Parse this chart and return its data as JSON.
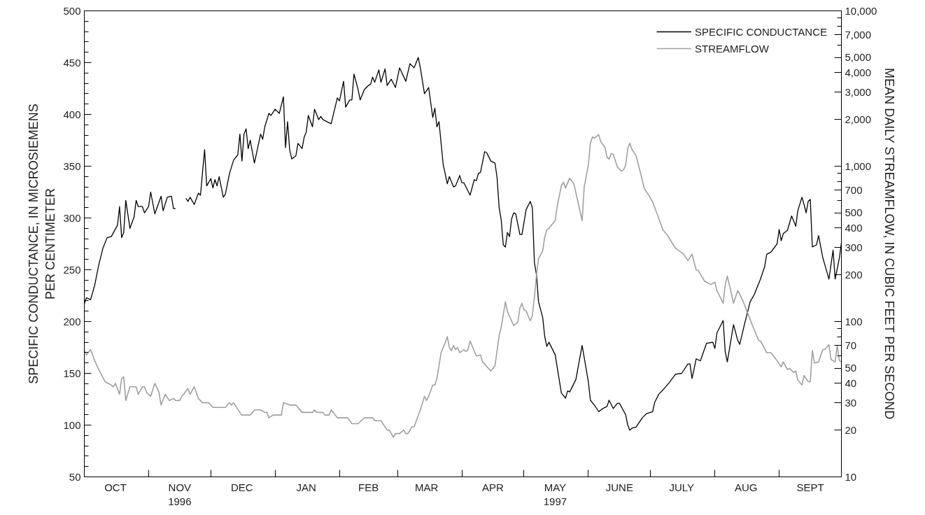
{
  "chart_data": {
    "type": "line",
    "ylabel": "SPECIFIC CONDUCTANCE, IN MICROSIEMENS\nPER CENTIMETER",
    "y2label": "MEAN DAILY STREAMFLOW, IN CUBIC FEET PER SECOND",
    "xlim": [
      "1996-10-01",
      "1997-10-01"
    ],
    "xticks": [
      {
        "value": "1996-10-01",
        "label": null
      },
      {
        "value": "1996-10-16",
        "label": "OCT"
      },
      {
        "value": "1996-11-01",
        "label": null
      },
      {
        "value": "1996-11-16",
        "label": "NOV\n1996"
      },
      {
        "value": "1996-12-01",
        "label": null
      },
      {
        "value": "1996-12-16",
        "label": "DEC"
      },
      {
        "value": "1997-01-01",
        "label": null
      },
      {
        "value": "1997-01-16",
        "label": "JAN"
      },
      {
        "value": "1997-02-01",
        "label": null
      },
      {
        "value": "1997-02-15",
        "label": "FEB"
      },
      {
        "value": "1997-03-01",
        "label": null
      },
      {
        "value": "1997-03-15",
        "label": "MAR"
      },
      {
        "value": "1997-04-01",
        "label": null
      },
      {
        "value": "1997-04-16",
        "label": "APR"
      },
      {
        "value": "1997-05-01",
        "label": null
      },
      {
        "value": "1997-05-16",
        "label": "MAY\n1997"
      },
      {
        "value": "1997-06-01",
        "label": null
      },
      {
        "value": "1997-06-16",
        "label": "JUNE"
      },
      {
        "value": "1997-07-01",
        "label": null
      },
      {
        "value": "1997-07-16",
        "label": "JULY"
      },
      {
        "value": "1997-08-01",
        "label": null
      },
      {
        "value": "1997-08-16",
        "label": "AUG"
      },
      {
        "value": "1997-09-01",
        "label": null
      },
      {
        "value": "1997-09-16",
        "label": "SEPT"
      },
      {
        "value": "1997-10-01",
        "label": null
      }
    ],
    "ylim": [
      50,
      500
    ],
    "yticks": [
      50,
      {
        "value": 60,
        "label": null
      },
      {
        "value": 70,
        "label": null
      },
      {
        "value": 80,
        "label": null
      },
      {
        "value": 90,
        "label": null
      },
      100,
      {
        "value": 110,
        "label": null
      },
      {
        "value": 120,
        "label": null
      },
      {
        "value": 130,
        "label": null
      },
      {
        "value": 140,
        "label": null
      },
      150,
      {
        "value": 160,
        "label": null
      },
      {
        "value": 170,
        "label": null
      },
      {
        "value": 180,
        "label": null
      },
      {
        "value": 190,
        "label": null
      },
      200,
      {
        "value": 210,
        "label": null
      },
      {
        "value": 220,
        "label": null
      },
      {
        "value": 230,
        "label": null
      },
      {
        "value": 240,
        "label": null
      },
      250,
      {
        "value": 260,
        "label": null
      },
      {
        "value": 270,
        "label": null
      },
      {
        "value": 280,
        "label": null
      },
      {
        "value": 290,
        "label": null
      },
      300,
      {
        "value": 310,
        "label": null
      },
      {
        "value": 320,
        "label": null
      },
      {
        "value": 330,
        "label": null
      },
      {
        "value": 340,
        "label": null
      },
      350,
      {
        "value": 360,
        "label": null
      },
      {
        "value": 370,
        "label": null
      },
      {
        "value": 380,
        "label": null
      },
      {
        "value": 390,
        "label": null
      },
      400,
      {
        "value": 410,
        "label": null
      },
      {
        "value": 420,
        "label": null
      },
      {
        "value": 430,
        "label": null
      },
      {
        "value": 440,
        "label": null
      },
      450,
      {
        "value": 460,
        "label": null
      },
      {
        "value": 470,
        "label": null
      },
      {
        "value": 480,
        "label": null
      },
      {
        "value": 490,
        "label": null
      },
      500
    ],
    "y2lim": [
      10,
      10000
    ],
    "y2ticks": [
      10,
      20,
      30,
      40,
      50,
      {
        "value": 60,
        "label": null
      },
      70,
      {
        "value": 80,
        "label": null
      },
      {
        "value": 90,
        "label": null
      },
      100,
      200,
      300,
      400,
      500,
      {
        "value": 600,
        "label": null
      },
      700,
      {
        "value": 800,
        "label": null
      },
      {
        "value": 900,
        "label": null
      },
      {
        "value": 1000,
        "label": "1,000"
      },
      {
        "value": 2000,
        "label": "2,000"
      },
      {
        "value": 3000,
        "label": "3,000"
      },
      {
        "value": 4000,
        "label": "4,000"
      },
      {
        "value": 5000,
        "label": "5,000"
      },
      {
        "value": 6000,
        "label": null
      },
      {
        "value": 7000,
        "label": "7,000"
      },
      {
        "value": 8000,
        "label": null
      },
      {
        "value": 9000,
        "label": null
      },
      {
        "value": 10000,
        "label": "10,000"
      }
    ],
    "log": "y2",
    "legend": "top right",
    "line_style": "solid",
    "series": [
      {
        "name": "SPECIFIC CONDUCTANCE",
        "color": "#000000",
        "x": [
          "1996-10-01",
          "1996-10-02",
          "1996-10-04",
          "1996-10-06",
          "1996-10-08",
          "1996-10-10",
          "1996-10-12",
          "1996-10-14",
          "1996-10-17",
          "1996-10-18",
          "1996-10-19",
          "1996-10-20",
          "1996-10-21",
          "1996-10-23",
          "1996-10-25",
          "1996-10-26",
          "1996-10-27",
          "1996-10-29",
          "1996-10-30",
          "1996-11-01",
          "1996-11-02",
          "1996-11-04",
          "1996-11-07",
          "1996-11-08",
          "1996-11-10",
          "1996-11-12",
          "1996-11-13",
          "1996-11-14",
          "1996-11-16",
          "1996-11-19",
          "1996-11-20",
          "1996-11-21",
          "1996-11-23",
          "1996-11-25",
          "1996-11-26",
          "1996-11-28",
          "1996-11-29",
          "1996-12-01",
          "1996-12-02",
          "1996-12-03",
          "1996-12-04",
          "1996-12-05",
          "1996-12-07",
          "1996-12-08",
          "1996-12-10",
          "1996-12-12",
          "1996-12-14",
          "1996-12-15",
          "1996-12-16",
          "1996-12-17",
          "1996-12-18",
          "1996-12-19",
          "1996-12-20",
          "1996-12-22",
          "1996-12-25",
          "1996-12-26",
          "1996-12-27",
          "1996-12-29",
          "1996-12-30",
          "1997-01-01",
          "1997-01-03",
          "1997-01-05",
          "1997-01-06",
          "1997-01-07",
          "1997-01-08",
          "1997-01-09",
          "1997-01-11",
          "1997-01-12",
          "1997-01-14",
          "1997-01-15",
          "1997-01-16",
          "1997-01-17",
          "1997-01-19",
          "1997-01-20",
          "1997-01-22",
          "1997-01-23",
          "1997-01-24",
          "1997-01-28",
          "1997-01-31",
          "1997-02-01",
          "1997-02-03",
          "1997-02-04",
          "1997-02-06",
          "1997-02-07",
          "1997-02-08",
          "1997-02-10",
          "1997-02-11",
          "1997-02-13",
          "1997-02-15",
          "1997-02-16",
          "1997-02-17",
          "1997-02-18",
          "1997-02-20",
          "1997-02-21",
          "1997-02-23",
          "1997-02-24",
          "1997-02-26",
          "1997-02-28",
          "1997-03-02",
          "1997-03-05",
          "1997-03-07",
          "1997-03-09",
          "1997-03-11",
          "1997-03-12",
          "1997-03-14",
          "1997-03-16",
          "1997-03-18",
          "1997-03-19",
          "1997-03-20",
          "1997-03-21",
          "1997-03-23",
          "1997-03-25",
          "1997-03-26",
          "1997-03-28",
          "1997-03-29",
          "1997-03-31",
          "1997-04-01",
          "1997-04-02",
          "1997-04-05",
          "1997-04-07",
          "1997-04-08",
          "1997-04-09",
          "1997-04-10",
          "1997-04-12",
          "1997-04-13",
          "1997-04-15",
          "1997-04-17",
          "1997-04-18",
          "1997-04-19",
          "1997-04-20",
          "1997-04-21",
          "1997-04-22",
          "1997-04-23",
          "1997-04-24",
          "1997-04-25",
          "1997-04-26",
          "1997-04-27",
          "1997-04-29",
          "1997-04-30",
          "1997-05-02",
          "1997-05-04",
          "1997-05-05",
          "1997-05-06",
          "1997-05-07",
          "1997-05-08",
          "1997-05-10",
          "1997-05-11",
          "1997-05-12",
          "1997-05-13",
          "1997-05-16",
          "1997-05-19",
          "1997-05-21",
          "1997-05-22",
          "1997-05-23",
          "1997-05-26",
          "1997-05-29",
          "1997-06-01",
          "1997-06-02",
          "1997-06-04",
          "1997-06-06",
          "1997-06-08",
          "1997-06-10",
          "1997-06-11",
          "1997-06-13",
          "1997-06-15",
          "1997-06-16",
          "1997-06-19",
          "1997-06-20",
          "1997-06-21",
          "1997-06-22",
          "1997-06-24",
          "1997-06-27",
          "1997-06-29",
          "1997-07-02",
          "1997-07-03",
          "1997-07-05",
          "1997-07-07",
          "1997-07-10",
          "1997-07-13",
          "1997-07-16",
          "1997-07-19",
          "1997-07-20",
          "1997-07-21",
          "1997-07-23",
          "1997-07-25",
          "1997-07-28",
          "1997-07-31",
          "1997-08-01",
          "1997-08-02",
          "1997-08-05",
          "1997-08-06",
          "1997-08-07",
          "1997-08-10",
          "1997-08-12",
          "1997-08-13",
          "1997-08-15",
          "1997-08-18",
          "1997-08-20",
          "1997-08-23",
          "1997-08-25",
          "1997-08-26",
          "1997-08-28",
          "1997-08-31",
          "1997-09-01",
          "1997-09-02",
          "1997-09-03",
          "1997-09-05",
          "1997-09-07",
          "1997-09-09",
          "1997-09-10",
          "1997-09-12",
          "1997-09-13",
          "1997-09-14",
          "1997-09-15",
          "1997-09-16",
          "1997-09-17",
          "1997-09-19",
          "1997-09-20",
          "1997-09-22",
          "1997-09-23",
          "1997-09-25",
          "1997-09-27",
          "1997-09-28",
          "1997-09-30",
          "1997-10-01"
        ],
        "values": [
          217,
          223,
          221,
          235,
          255,
          271,
          281,
          282,
          293,
          311,
          281,
          286,
          317,
          290,
          301,
          317,
          311,
          311,
          305,
          311,
          325,
          304,
          321,
          307,
          320,
          321,
          309,
          309,
          null,
          319,
          316,
          320,
          313,
          324,
          322,
          366,
          331,
          338,
          329,
          337,
          331,
          340,
          320,
          323,
          343,
          356,
          361,
          381,
          355,
          381,
          386,
          367,
          375,
          353,
          381,
          376,
          388,
          401,
          399,
          405,
          401,
          417,
          368,
          393,
          366,
          357,
          360,
          372,
          367,
          378,
          383,
          399,
          388,
          405,
          395,
          398,
          395,
          391,
          416,
          413,
          432,
          407,
          414,
          414,
          439,
          424,
          414,
          424,
          428,
          429,
          436,
          431,
          443,
          431,
          444,
          428,
          434,
          426,
          445,
          432,
          449,
          445,
          455,
          445,
          420,
          426,
          397,
          406,
          388,
          393,
          352,
          333,
          340,
          330,
          331,
          341,
          334,
          334,
          322,
          337,
          336,
          343,
          344,
          364,
          363,
          355,
          353,
          339,
          310,
          298,
          274,
          272,
          286,
          282,
          299,
          305,
          304,
          284,
          284,
          308,
          316,
          310,
          257,
          245,
          219,
          204,
          185,
          176,
          180,
          168,
          131,
          126,
          133,
          132,
          144,
          177,
          142,
          124,
          119,
          113,
          116,
          118,
          124,
          116,
          121,
          121,
          110,
          100,
          95,
          97,
          98,
          107,
          111,
          113,
          122,
          130,
          134,
          141,
          149,
          150,
          159,
          159,
          145,
          164,
          162,
          179,
          180,
          174,
          189,
          201,
          171,
          161,
          197,
          182,
          178,
          195,
          219,
          226,
          241,
          253,
          265,
          267,
          275,
          289,
          278,
          285,
          288,
          302,
          292,
          307,
          320,
          313,
          305,
          316,
          318,
          272,
          274,
          283,
          262,
          255,
          241,
          269,
          241,
          261,
          276
        ]
      },
      {
        "name": "STREAMFLOW",
        "color": "#a0a0a0",
        "axis": "y2",
        "x": [
          "1996-10-01",
          "1996-10-02",
          "1996-10-04",
          "1996-10-06",
          "1996-10-08",
          "1996-10-11",
          "1996-10-14",
          "1996-10-15",
          "1996-10-16",
          "1996-10-18",
          "1996-10-19",
          "1996-10-20",
          "1996-10-21",
          "1996-10-23",
          "1996-10-26",
          "1996-10-27",
          "1996-10-29",
          "1996-10-30",
          "1996-10-31",
          "1996-11-02",
          "1996-11-04",
          "1996-11-06",
          "1996-11-07",
          "1996-11-09",
          "1996-11-11",
          "1996-11-13",
          "1996-11-14",
          "1996-11-16",
          "1996-11-17",
          "1996-11-20",
          "1996-11-21",
          "1996-11-23",
          "1996-11-25",
          "1996-11-27",
          "1996-11-30",
          "1996-12-02",
          "1996-12-08",
          "1996-12-10",
          "1996-12-11",
          "1996-12-12",
          "1996-12-15",
          "1996-12-16",
          "1996-12-20",
          "1996-12-22",
          "1996-12-25",
          "1996-12-27",
          "1996-12-28",
          "1996-12-29",
          "1996-12-31",
          "1997-01-03",
          "1997-01-04",
          "1997-01-05",
          "1997-01-08",
          "1997-01-11",
          "1997-01-14",
          "1997-01-19",
          "1997-01-20",
          "1997-01-21",
          "1997-01-24",
          "1997-01-25",
          "1997-01-27",
          "1997-01-28",
          "1997-01-29",
          "1997-01-31",
          "1997-02-05",
          "1997-02-07",
          "1997-02-10",
          "1997-02-13",
          "1997-02-17",
          "1997-02-18",
          "1997-02-21",
          "1997-02-24",
          "1997-02-25",
          "1997-02-27",
          "1997-02-28",
          "1997-03-02",
          "1997-03-04",
          "1997-03-05",
          "1997-03-06",
          "1997-03-08",
          "1997-03-09",
          "1997-03-12",
          "1997-03-14",
          "1997-03-15",
          "1997-03-16",
          "1997-03-18",
          "1997-03-19",
          "1997-03-20",
          "1997-03-22",
          "1997-03-24",
          "1997-03-25",
          "1997-03-26",
          "1997-03-27",
          "1997-03-28",
          "1997-03-29",
          "1997-03-30",
          "1997-03-31",
          "1997-04-02",
          "1997-04-03",
          "1997-04-04",
          "1997-04-05",
          "1997-04-08",
          "1997-04-10",
          "1997-04-11",
          "1997-04-15",
          "1997-04-17",
          "1997-04-19",
          "1997-04-20",
          "1997-04-22",
          "1997-04-23",
          "1997-04-26",
          "1997-04-28",
          "1997-04-29",
          "1997-04-30",
          "1997-05-01",
          "1997-05-02",
          "1997-05-04",
          "1997-05-05",
          "1997-05-06",
          "1997-05-07",
          "1997-05-08",
          "1997-05-10",
          "1997-05-11",
          "1997-05-12",
          "1997-05-13",
          "1997-05-16",
          "1997-05-17",
          "1997-05-19",
          "1997-05-20",
          "1997-05-21",
          "1997-05-23",
          "1997-05-25",
          "1997-05-27",
          "1997-05-29",
          "1997-05-30",
          "1997-06-01",
          "1997-06-02",
          "1997-06-03",
          "1997-06-04",
          "1997-06-06",
          "1997-06-07",
          "1997-06-09",
          "1997-06-10",
          "1997-06-11",
          "1997-06-12",
          "1997-06-13",
          "1997-06-15",
          "1997-06-17",
          "1997-06-18",
          "1997-06-19",
          "1997-06-20",
          "1997-06-21",
          "1997-06-22",
          "1997-06-24",
          "1997-06-26",
          "1997-06-28",
          "1997-06-30",
          "1997-07-02",
          "1997-07-04",
          "1997-07-07",
          "1997-07-09",
          "1997-07-11",
          "1997-07-13",
          "1997-07-17",
          "1997-07-19",
          "1997-07-21",
          "1997-07-23",
          "1997-07-24",
          "1997-07-27",
          "1997-07-30",
          "1997-08-01",
          "1997-08-02",
          "1997-08-05",
          "1997-08-06",
          "1997-08-07",
          "1997-08-09",
          "1997-08-10",
          "1997-08-12",
          "1997-08-13",
          "1997-08-15",
          "1997-08-18",
          "1997-08-22",
          "1997-08-23",
          "1997-08-26",
          "1997-08-28",
          "1997-08-31",
          "1997-09-02",
          "1997-09-03",
          "1997-09-05",
          "1997-09-06",
          "1997-09-08",
          "1997-09-09",
          "1997-09-10",
          "1997-09-12",
          "1997-09-13",
          "1997-09-15",
          "1997-09-16",
          "1997-09-17",
          "1997-09-18",
          "1997-09-20",
          "1997-09-22",
          "1997-09-23",
          "1997-09-25",
          "1997-09-26",
          "1997-09-28",
          "1997-09-29",
          "1997-09-30",
          "1997-10-01"
        ],
        "values": [
          65,
          61,
          66,
          56,
          49,
          41,
          39,
          38,
          40,
          34,
          43,
          44,
          31,
          38,
          38,
          34,
          38,
          38,
          35,
          33,
          40,
          35,
          29,
          34,
          31,
          32,
          31,
          31,
          33,
          37,
          34,
          38,
          32,
          30,
          30,
          28,
          28,
          30,
          29,
          30,
          26,
          25,
          25,
          27,
          27,
          26,
          26,
          24,
          25,
          25,
          25,
          30,
          29,
          29,
          26,
          26,
          27,
          26,
          26,
          25,
          25,
          27,
          26,
          24,
          24,
          22,
          22,
          24,
          24,
          23,
          23,
          20,
          20,
          18,
          19,
          19,
          20,
          19,
          19,
          21,
          21,
          27,
          33,
          31,
          33,
          39,
          39,
          43,
          63,
          73,
          80,
          68,
          65,
          70,
          66,
          68,
          63,
          66,
          64,
          66,
          75,
          60,
          61,
          55,
          48,
          52,
          81,
          92,
          134,
          116,
          94,
          99,
          122,
          131,
          119,
          117,
          101,
          109,
          144,
          200,
          254,
          285,
          351,
          389,
          397,
          446,
          553,
          748,
          787,
          724,
          837,
          771,
          589,
          446,
          733,
          1021,
          1409,
          1545,
          1514,
          1596,
          1439,
          1324,
          1146,
          1109,
          1205,
          1194,
          989,
          929,
          948,
          1021,
          1297,
          1409,
          1282,
          1169,
          920,
          718,
          653,
          589,
          499,
          389,
          362,
          327,
          297,
          271,
          247,
          271,
          215,
          213,
          182,
          173,
          179,
          158,
          131,
          173,
          196,
          151,
          131,
          158,
          150,
          131,
          103,
          76,
          75,
          63,
          63,
          56,
          51,
          55,
          49,
          50,
          47,
          48,
          42,
          39,
          45,
          41,
          41,
          65,
          54,
          55,
          66,
          66,
          71,
          57,
          55,
          70,
          56,
          55
        ]
      }
    ]
  }
}
